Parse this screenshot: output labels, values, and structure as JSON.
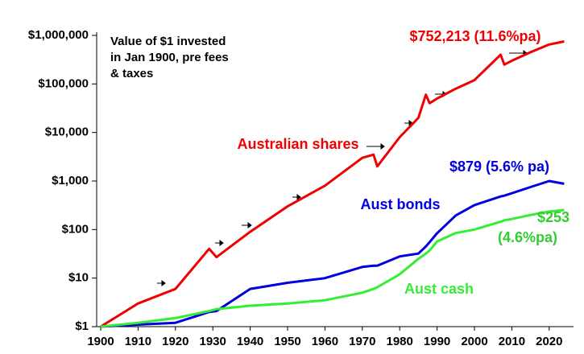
{
  "chart_data": {
    "type": "line",
    "note": [
      "Value of $1 invested",
      "in Jan 1900, pre fees",
      "& taxes"
    ],
    "x": [
      1900,
      1910,
      1920,
      1929,
      1931,
      1940,
      1950,
      1960,
      1970,
      1973,
      1974,
      1980,
      1985,
      1987,
      1988,
      1990,
      1995,
      2000,
      2007,
      2008,
      2010,
      2015,
      2020,
      2024
    ],
    "series": [
      {
        "name": "Australian shares",
        "color": "#f00000",
        "values": [
          1,
          3,
          6,
          40,
          27,
          90,
          300,
          800,
          3000,
          3500,
          2000,
          8000,
          20000,
          60000,
          40000,
          50000,
          80000,
          120000,
          400000,
          250000,
          300000,
          450000,
          650000,
          752213
        ]
      },
      {
        "name": "Aust bonds",
        "color": "#0000e0",
        "values": [
          1,
          1.1,
          1.2,
          2,
          2.1,
          6,
          8,
          10,
          17,
          18,
          18,
          28,
          32,
          45,
          55,
          84,
          195,
          320,
          480,
          500,
          560,
          750,
          1000,
          879
        ]
      },
      {
        "name": "Aust cash",
        "color": "#33ee33",
        "values": [
          1,
          1.2,
          1.5,
          2.1,
          2.3,
          2.7,
          3,
          3.5,
          5,
          6,
          6.5,
          12,
          25,
          32,
          37,
          57,
          85,
          100,
          145,
          155,
          165,
          200,
          235,
          253
        ]
      }
    ],
    "annotations": [
      {
        "text": "$752,213 (11.6%pa)",
        "color": "#f00000"
      },
      {
        "text": "$879 (5.6% pa)",
        "color": "#0000e0"
      },
      {
        "text": "$253",
        "color": "#33cc33"
      },
      {
        "text": "(4.6%pa)",
        "color": "#33cc33"
      }
    ],
    "log_y": true,
    "xlim": [
      1900,
      2025
    ],
    "ylim": [
      1,
      1000000
    ],
    "xticks": [
      1900,
      1910,
      1920,
      1930,
      1940,
      1950,
      1960,
      1970,
      1980,
      1990,
      2000,
      2010,
      2020
    ],
    "yticks": [
      {
        "value": 1,
        "label": "$1"
      },
      {
        "value": 10,
        "label": "$10"
      },
      {
        "value": 100,
        "label": "$100"
      },
      {
        "value": 1000,
        "label": "$1,000"
      },
      {
        "value": 10000,
        "label": "$10,000"
      },
      {
        "value": 100000,
        "label": "$100,000"
      },
      {
        "value": 1000000,
        "label": "$1,000,000"
      }
    ]
  }
}
